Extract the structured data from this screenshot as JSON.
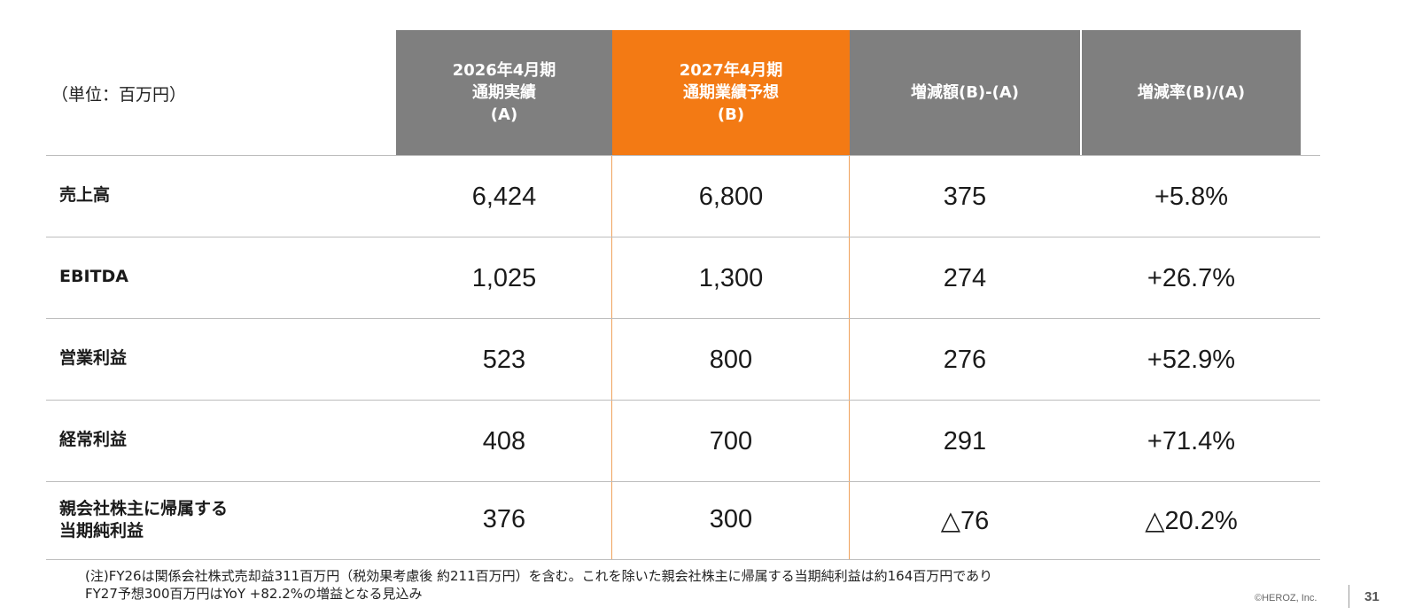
{
  "table": {
    "unit_label": "（単位：百万円）",
    "headers": [
      {
        "lines": [
          "2026年4月期",
          "通期実績",
          "(A)"
        ]
      },
      {
        "lines": [
          "2027年4月期",
          "通期業績予想",
          "(B)"
        ]
      },
      {
        "lines": [
          "増減額(B)-(A)"
        ]
      },
      {
        "lines": [
          "増減率(B)/(A)"
        ]
      }
    ],
    "rows": [
      {
        "label": [
          "売上高"
        ],
        "a": "6,424",
        "b": "6,800",
        "diff": "375",
        "rate": "+5.8%"
      },
      {
        "label": [
          "EBITDA"
        ],
        "a": "1,025",
        "b": "1,300",
        "diff": "274",
        "rate": "+26.7%"
      },
      {
        "label": [
          "営業利益"
        ],
        "a": "523",
        "b": "800",
        "diff": "276",
        "rate": "+52.9%"
      },
      {
        "label": [
          "経常利益"
        ],
        "a": "408",
        "b": "700",
        "diff": "291",
        "rate": "+71.4%"
      },
      {
        "label": [
          "親会社株主に帰属する",
          "当期純利益"
        ],
        "a": "376",
        "b": "300",
        "diff": "△76",
        "rate": "△20.2%"
      }
    ]
  },
  "note": {
    "line1": "(注)FY26は関係会社株式売却益311百万円（税効果考慮後 約211百万円）を含む。これを除いた親会社株主に帰属する当期純利益は約164百万円であり",
    "line2": "FY27予想300百万円はYoY +82.2%の増益となる見込み"
  },
  "footer": {
    "copyright": "©HEROZ, Inc.",
    "page_number": "31"
  },
  "colors": {
    "header_gray": "#7f7f7f",
    "header_orange": "#f37a14"
  }
}
